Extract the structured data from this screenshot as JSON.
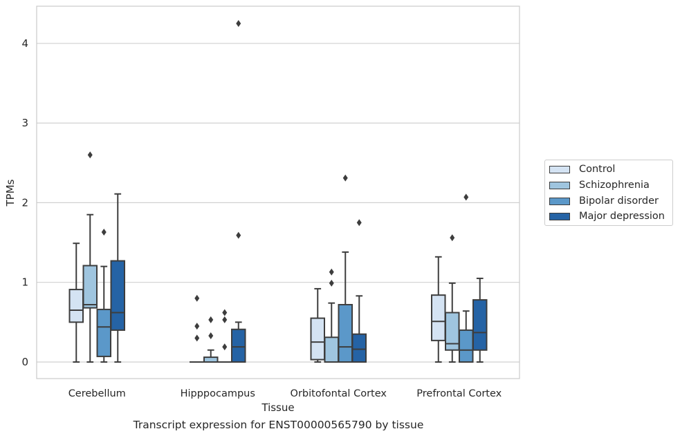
{
  "caption": "Transcript expression for ENST00000565790 by tissue",
  "chart_data": {
    "type": "box",
    "xlabel": "Tissue",
    "ylabel": "TPMs",
    "ylim": [
      -0.2,
      4.5
    ],
    "yticks": [
      0,
      1,
      2,
      3,
      4
    ],
    "grid": "horizontal",
    "legend_position": "right",
    "categories": [
      "Cerebellum",
      "Hipppocampus",
      "Orbitofontal Cortex",
      "Prefrontal Cortex"
    ],
    "series": [
      {
        "name": "Control",
        "color": "#d4e3f3",
        "boxes": [
          {
            "whislo": 0.0,
            "q1": 0.5,
            "median": 0.65,
            "q3": 0.91,
            "whishi": 1.49,
            "fliers": []
          },
          {
            "whislo": 0.0,
            "q1": 0.0,
            "median": 0.0,
            "q3": 0.0,
            "whishi": 0.0,
            "fliers": [
              0.8,
              0.45,
              0.3
            ]
          },
          {
            "whislo": 0.0,
            "q1": 0.03,
            "median": 0.25,
            "q3": 0.55,
            "whishi": 0.92,
            "fliers": []
          },
          {
            "whislo": 0.0,
            "q1": 0.27,
            "median": 0.51,
            "q3": 0.84,
            "whishi": 1.32,
            "fliers": []
          }
        ]
      },
      {
        "name": "Schizophrenia",
        "color": "#9fc5df",
        "boxes": [
          {
            "whislo": 0.0,
            "q1": 0.68,
            "median": 0.72,
            "q3": 1.21,
            "whishi": 1.85,
            "fliers": [
              2.6
            ]
          },
          {
            "whislo": 0.0,
            "q1": 0.0,
            "median": 0.0,
            "q3": 0.06,
            "whishi": 0.15,
            "fliers": [
              0.53,
              0.33
            ]
          },
          {
            "whislo": 0.0,
            "q1": 0.0,
            "median": 0.0,
            "q3": 0.31,
            "whishi": 0.74,
            "fliers": [
              1.13,
              0.99
            ]
          },
          {
            "whislo": 0.0,
            "q1": 0.15,
            "median": 0.23,
            "q3": 0.62,
            "whishi": 0.99,
            "fliers": [
              1.56
            ]
          }
        ]
      },
      {
        "name": "Bipolar disorder",
        "color": "#5b98c9",
        "boxes": [
          {
            "whislo": 0.0,
            "q1": 0.07,
            "median": 0.44,
            "q3": 0.66,
            "whishi": 1.2,
            "fliers": [
              1.63
            ]
          },
          {
            "whislo": 0.0,
            "q1": 0.0,
            "median": 0.0,
            "q3": 0.0,
            "whishi": 0.0,
            "fliers": [
              0.62,
              0.53,
              0.19
            ]
          },
          {
            "whislo": 0.0,
            "q1": 0.0,
            "median": 0.19,
            "q3": 0.72,
            "whishi": 1.38,
            "fliers": [
              2.31
            ]
          },
          {
            "whislo": 0.0,
            "q1": 0.0,
            "median": 0.15,
            "q3": 0.4,
            "whishi": 0.64,
            "fliers": [
              2.07
            ]
          }
        ]
      },
      {
        "name": "Major depression",
        "color": "#2563a5",
        "boxes": [
          {
            "whislo": 0.0,
            "q1": 0.4,
            "median": 0.62,
            "q3": 1.27,
            "whishi": 2.11,
            "fliers": []
          },
          {
            "whislo": 0.0,
            "q1": 0.0,
            "median": 0.19,
            "q3": 0.41,
            "whishi": 0.5,
            "fliers": [
              4.25,
              1.59
            ]
          },
          {
            "whislo": 0.0,
            "q1": 0.0,
            "median": 0.16,
            "q3": 0.35,
            "whishi": 0.83,
            "fliers": [
              1.75
            ]
          },
          {
            "whislo": 0.0,
            "q1": 0.15,
            "median": 0.37,
            "q3": 0.78,
            "whishi": 1.05,
            "fliers": []
          }
        ]
      }
    ]
  }
}
